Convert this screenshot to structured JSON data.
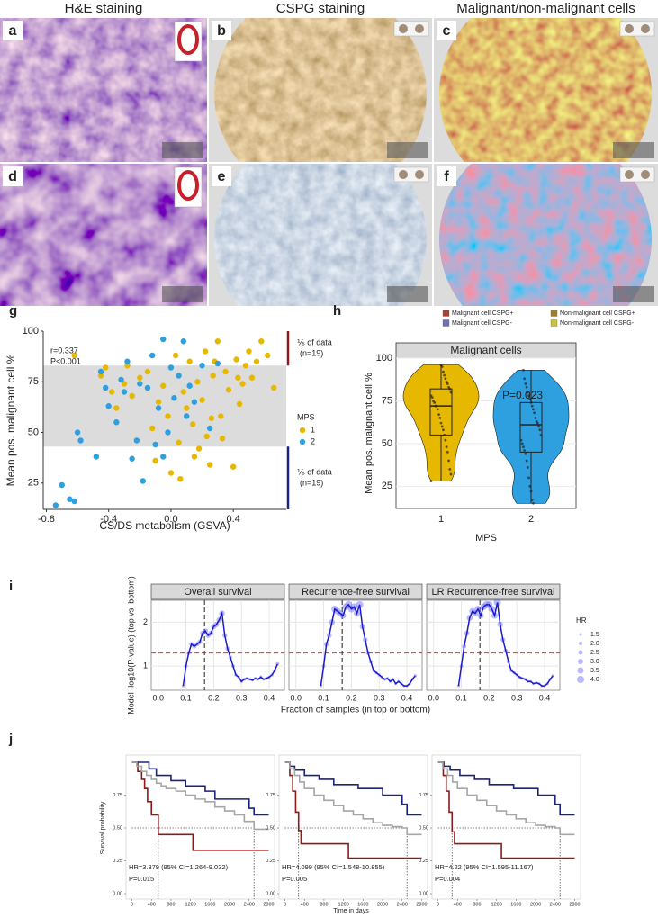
{
  "figure": {
    "headers": [
      "H&E staining",
      "CSPG staining",
      "Malignant/non-malignant cells"
    ],
    "panel_labels": [
      "a",
      "b",
      "c",
      "d",
      "e",
      "f"
    ],
    "legend": [
      {
        "label": "Malignant cell CSPG+",
        "color": "#a8453a"
      },
      {
        "label": "Non-malignant cell CSPG+",
        "color": "#9c7f2e"
      },
      {
        "label": "Malignant cell CSPG-",
        "color": "#6e6fb4"
      },
      {
        "label": "Non-malignant cell CSPG-",
        "color": "#c9c243"
      }
    ]
  },
  "chart_data": [
    {
      "type": "scatter",
      "panel": "g",
      "xlabel": "CS/DS metabolism (GSVA)",
      "ylabel": "Mean pos. malignant cell %",
      "annotations": [
        "r=0.337",
        "P<0.001"
      ],
      "xlim": [
        -0.82,
        0.74
      ],
      "xticks": [
        -0.8,
        -0.4,
        {
          "value": 0,
          "label": "0.0"
        },
        0.4
      ],
      "ylim": [
        12,
        100
      ],
      "yticks": [
        25,
        50,
        75,
        100
      ],
      "band": [
        43,
        83
      ],
      "brackets": [
        {
          "label": "⅙ of data",
          "n": "(n=19)",
          "range": [
            83,
            100
          ],
          "color": "#8b1a1a"
        },
        {
          "label": "⅙ of data",
          "n": "(n=19)",
          "range": [
            12,
            43
          ],
          "color": "#1a237e"
        }
      ],
      "legend_title": "MPS",
      "series": [
        {
          "name": "1",
          "color": "#e7b800",
          "x": [
            -0.62,
            -0.45,
            -0.42,
            -0.38,
            -0.35,
            -0.3,
            -0.28,
            -0.25,
            -0.2,
            -0.15,
            -0.12,
            -0.1,
            -0.08,
            -0.05,
            -0.02,
            0.0,
            0.03,
            0.05,
            0.06,
            0.08,
            0.1,
            0.12,
            0.14,
            0.15,
            0.17,
            0.2,
            0.22,
            0.23,
            0.25,
            0.27,
            0.28,
            0.3,
            0.32,
            0.35,
            0.37,
            0.4,
            0.42,
            0.44,
            0.46,
            0.48,
            0.5,
            0.52,
            0.55,
            0.58,
            0.62,
            0.66,
            0.18,
            0.26,
            0.33,
            0.43
          ],
          "values": [
            88,
            78,
            82,
            70,
            62,
            74,
            83,
            68,
            77,
            80,
            52,
            36,
            65,
            73,
            58,
            30,
            88,
            45,
            27,
            70,
            62,
            85,
            54,
            38,
            75,
            66,
            90,
            48,
            34,
            78,
            85,
            95,
            58,
            80,
            71,
            33,
            86,
            64,
            74,
            83,
            90,
            77,
            85,
            95,
            88,
            72,
            42,
            57,
            47,
            77
          ]
        },
        {
          "name": "2",
          "color": "#2e9fdf",
          "x": [
            -0.74,
            -0.7,
            -0.65,
            -0.62,
            -0.6,
            -0.58,
            -0.48,
            -0.45,
            -0.4,
            -0.35,
            -0.32,
            -0.3,
            -0.28,
            -0.25,
            -0.22,
            -0.2,
            -0.18,
            -0.15,
            -0.12,
            -0.1,
            -0.08,
            -0.05,
            -0.02,
            0.0,
            0.02,
            0.05,
            0.08,
            0.1,
            0.12,
            0.15,
            0.2,
            0.25,
            0.3,
            -0.42,
            -0.05
          ],
          "values": [
            14,
            24,
            17,
            16,
            50,
            46,
            38,
            80,
            63,
            55,
            76,
            70,
            85,
            37,
            46,
            74,
            26,
            72,
            88,
            44,
            62,
            96,
            50,
            82,
            67,
            78,
            95,
            58,
            73,
            65,
            83,
            52,
            84,
            72,
            38
          ]
        }
      ]
    },
    {
      "type": "violin",
      "panel": "h",
      "strip_title": "Malignant cells",
      "xlabel": "MPS",
      "ylabel": "Mean pos. malignant cell %",
      "annotation": "P=0.023",
      "ylim": [
        12,
        100
      ],
      "yticks": [
        25,
        50,
        75,
        100
      ],
      "categories": [
        "1",
        "2"
      ],
      "groups": [
        {
          "color": "#e7b800",
          "box": {
            "min": 28,
            "q1": 55,
            "median": 72,
            "q3": 82,
            "max": 96
          },
          "values": [
            28,
            32,
            35,
            40,
            45,
            48,
            52,
            55,
            58,
            60,
            62,
            65,
            67,
            70,
            72,
            72,
            74,
            75,
            77,
            78,
            80,
            82,
            83,
            85,
            86,
            88,
            90,
            92,
            95,
            96
          ]
        },
        {
          "color": "#2e9fdf",
          "box": {
            "min": 15,
            "q1": 45,
            "median": 61,
            "q3": 74,
            "max": 93
          },
          "values": [
            15,
            17,
            22,
            25,
            30,
            36,
            40,
            44,
            46,
            48,
            50,
            52,
            55,
            58,
            60,
            62,
            63,
            65,
            68,
            70,
            72,
            74,
            76,
            78,
            80,
            83,
            85,
            88,
            93
          ]
        }
      ]
    },
    {
      "type": "line",
      "panel": "i",
      "xlabel": "Fraction of samples (in top or bottom)",
      "ylabel": "Model -log10(P-value) (top vs. bottom)",
      "xlim": [
        -0.025,
        0.455
      ],
      "xticks": [
        {
          "value": 0,
          "label": "0.0"
        },
        0.1,
        0.2,
        0.3,
        0.4
      ],
      "ylim": [
        0.45,
        2.5
      ],
      "yticks": [
        1,
        2
      ],
      "hline": 1.3,
      "vline": 0.167,
      "line_color": "#1a1acc",
      "point_color": "#6464ff",
      "size_legend": {
        "title": "HR",
        "values": [
          1.5,
          {
            "value": 2,
            "label": "2.0"
          },
          2.5,
          {
            "value": 3,
            "label": "3.0"
          },
          3.5,
          {
            "value": 4,
            "label": "4.0"
          }
        ]
      },
      "x": [
        0.09,
        0.1,
        0.11,
        0.12,
        0.13,
        0.14,
        0.15,
        0.16,
        0.17,
        0.18,
        0.19,
        0.2,
        0.21,
        0.22,
        0.23,
        0.24,
        0.25,
        0.26,
        0.27,
        0.28,
        0.29,
        0.3,
        0.31,
        0.32,
        0.33,
        0.34,
        0.35,
        0.36,
        0.37,
        0.38,
        0.39,
        0.4,
        0.41,
        0.42,
        0.43
      ],
      "facets": [
        {
          "title": "Overall survival",
          "values": [
            0.55,
            1.0,
            1.3,
            1.5,
            1.45,
            1.5,
            1.55,
            1.75,
            1.8,
            1.7,
            1.75,
            1.9,
            1.95,
            2.05,
            2.2,
            1.7,
            1.4,
            1.2,
            1.0,
            0.8,
            0.75,
            0.65,
            0.7,
            0.72,
            0.7,
            0.68,
            0.72,
            0.7,
            0.75,
            0.7,
            0.72,
            0.75,
            0.8,
            0.9,
            1.05
          ],
          "hr": [
            1.6,
            2.0,
            2.3,
            2.5,
            2.5,
            2.5,
            2.6,
            2.8,
            2.9,
            2.8,
            2.8,
            3.0,
            3.0,
            3.1,
            3.2,
            2.7,
            2.4,
            2.2,
            2.0,
            1.8,
            1.7,
            1.6,
            1.7,
            1.7,
            1.7,
            1.6,
            1.7,
            1.7,
            1.7,
            1.7,
            1.7,
            1.7,
            1.8,
            1.9,
            2.0
          ]
        },
        {
          "title": "Recurrence-free survival",
          "values": [
            0.55,
            1.0,
            1.5,
            1.7,
            2.0,
            2.3,
            2.25,
            2.2,
            2.15,
            2.35,
            2.4,
            2.3,
            2.35,
            2.2,
            2.4,
            1.9,
            1.6,
            1.3,
            1.1,
            0.9,
            0.85,
            0.8,
            0.75,
            0.7,
            0.72,
            0.65,
            0.7,
            0.6,
            0.65,
            0.6,
            0.55,
            0.55,
            0.6,
            0.7,
            0.78
          ],
          "hr": [
            1.6,
            2.0,
            2.6,
            2.9,
            3.3,
            3.7,
            3.6,
            3.5,
            3.4,
            3.8,
            4.0,
            3.8,
            3.9,
            3.6,
            4.0,
            3.1,
            2.7,
            2.3,
            2.1,
            1.9,
            1.8,
            1.8,
            1.7,
            1.7,
            1.7,
            1.6,
            1.7,
            1.6,
            1.6,
            1.6,
            1.5,
            1.5,
            1.6,
            1.7,
            1.8
          ]
        },
        {
          "title": "LR Recurrence-free survival",
          "values": [
            0.55,
            1.0,
            1.45,
            1.75,
            2.1,
            2.25,
            2.2,
            2.3,
            2.15,
            2.35,
            2.4,
            2.4,
            2.3,
            2.15,
            2.45,
            1.95,
            1.6,
            1.35,
            1.1,
            0.9,
            0.85,
            0.8,
            0.75,
            0.72,
            0.7,
            0.65,
            0.65,
            0.6,
            0.62,
            0.6,
            0.55,
            0.55,
            0.6,
            0.7,
            0.78
          ],
          "hr": [
            1.6,
            2.0,
            2.5,
            2.8,
            3.4,
            3.6,
            3.5,
            3.6,
            3.4,
            3.7,
            3.9,
            3.9,
            3.8,
            3.5,
            4.0,
            3.2,
            2.7,
            2.4,
            2.1,
            1.9,
            1.8,
            1.8,
            1.7,
            1.7,
            1.7,
            1.6,
            1.6,
            1.6,
            1.6,
            1.6,
            1.5,
            1.5,
            1.6,
            1.7,
            1.8
          ]
        }
      ]
    },
    {
      "type": "km",
      "panel": "j",
      "xlabel": "Time in days",
      "ylabel": "Survival probability",
      "xlim": [
        -120,
        2920
      ],
      "xticks": [
        0,
        400,
        800,
        1200,
        1600,
        2000,
        2400,
        2800
      ],
      "ylim": [
        0,
        1
      ],
      "yticks": [
        {
          "value": 0,
          "label": "0.00"
        },
        0.25,
        {
          "value": 0.5,
          "label": "0.50"
        },
        0.75
      ],
      "median_level": 0.5,
      "panels": [
        {
          "hr_text": "HR=3.379 (95% CI=1.264-9.032)",
          "p_text": "P=0.015",
          "medians": [
            540,
            2500
          ],
          "series": [
            {
              "color": "#8b1a1a",
              "x": [
                0,
                120,
                200,
                260,
                320,
                400,
                540,
                1250,
                2800
              ],
              "values": [
                1.0,
                0.93,
                0.87,
                0.8,
                0.7,
                0.6,
                0.45,
                0.33,
                0.33
              ]
            },
            {
              "color": "#1a237e",
              "x": [
                0,
                350,
                500,
                800,
                1100,
                1500,
                1700,
                2400,
                2500,
                2800
              ],
              "values": [
                1.0,
                0.95,
                0.9,
                0.86,
                0.82,
                0.78,
                0.72,
                0.65,
                0.6,
                0.6
              ]
            },
            {
              "color": "#a6a6a6",
              "x": [
                0,
                100,
                200,
                300,
                400,
                500,
                600,
                700,
                900,
                1100,
                1300,
                1500,
                1700,
                1900,
                2100,
                2300,
                2500,
                2800
              ],
              "values": [
                1.0,
                0.97,
                0.93,
                0.9,
                0.87,
                0.84,
                0.82,
                0.8,
                0.78,
                0.75,
                0.72,
                0.7,
                0.66,
                0.63,
                0.6,
                0.55,
                0.49,
                0.49
              ]
            }
          ]
        },
        {
          "hr_text": "HR=4.099 (95% CI=1.548-10.855)",
          "p_text": "P=0.005",
          "medians": [
            280,
            2500
          ],
          "series": [
            {
              "color": "#8b1a1a",
              "x": [
                0,
                100,
                160,
                220,
                280,
                330,
                1300,
                2800
              ],
              "values": [
                1.0,
                0.9,
                0.78,
                0.62,
                0.48,
                0.38,
                0.27,
                0.27
              ]
            },
            {
              "color": "#1a237e",
              "x": [
                0,
                100,
                200,
                400,
                700,
                1000,
                1500,
                2000,
                2400,
                2500,
                2800
              ],
              "values": [
                1.0,
                0.97,
                0.94,
                0.9,
                0.87,
                0.83,
                0.8,
                0.75,
                0.68,
                0.6,
                0.6
              ]
            },
            {
              "color": "#a6a6a6",
              "x": [
                0,
                100,
                200,
                300,
                400,
                600,
                800,
                1000,
                1200,
                1400,
                1600,
                1800,
                2000,
                2200,
                2400,
                2500,
                2800
              ],
              "values": [
                1.0,
                0.95,
                0.9,
                0.85,
                0.8,
                0.75,
                0.71,
                0.67,
                0.63,
                0.6,
                0.57,
                0.54,
                0.52,
                0.51,
                0.5,
                0.45,
                0.45
              ]
            }
          ]
        },
        {
          "hr_text": "HR=4.22 (95% CI=1.595-11.167)",
          "p_text": "P=0.004",
          "medians": [
            290,
            2500
          ],
          "series": [
            {
              "color": "#8b1a1a",
              "x": [
                0,
                110,
                170,
                230,
                290,
                340,
                1300,
                2800
              ],
              "values": [
                1.0,
                0.9,
                0.78,
                0.62,
                0.47,
                0.38,
                0.27,
                0.27
              ]
            },
            {
              "color": "#1a237e",
              "x": [
                0,
                120,
                250,
                450,
                750,
                1050,
                1550,
                2050,
                2400,
                2500,
                2800
              ],
              "values": [
                1.0,
                0.97,
                0.94,
                0.9,
                0.87,
                0.83,
                0.8,
                0.75,
                0.68,
                0.6,
                0.6
              ]
            },
            {
              "color": "#a6a6a6",
              "x": [
                0,
                100,
                200,
                300,
                400,
                600,
                800,
                1000,
                1200,
                1400,
                1600,
                1800,
                2000,
                2200,
                2400,
                2500,
                2800
              ],
              "values": [
                1.0,
                0.95,
                0.9,
                0.85,
                0.8,
                0.75,
                0.71,
                0.67,
                0.63,
                0.6,
                0.57,
                0.54,
                0.52,
                0.51,
                0.5,
                0.45,
                0.45
              ]
            }
          ]
        }
      ]
    }
  ]
}
